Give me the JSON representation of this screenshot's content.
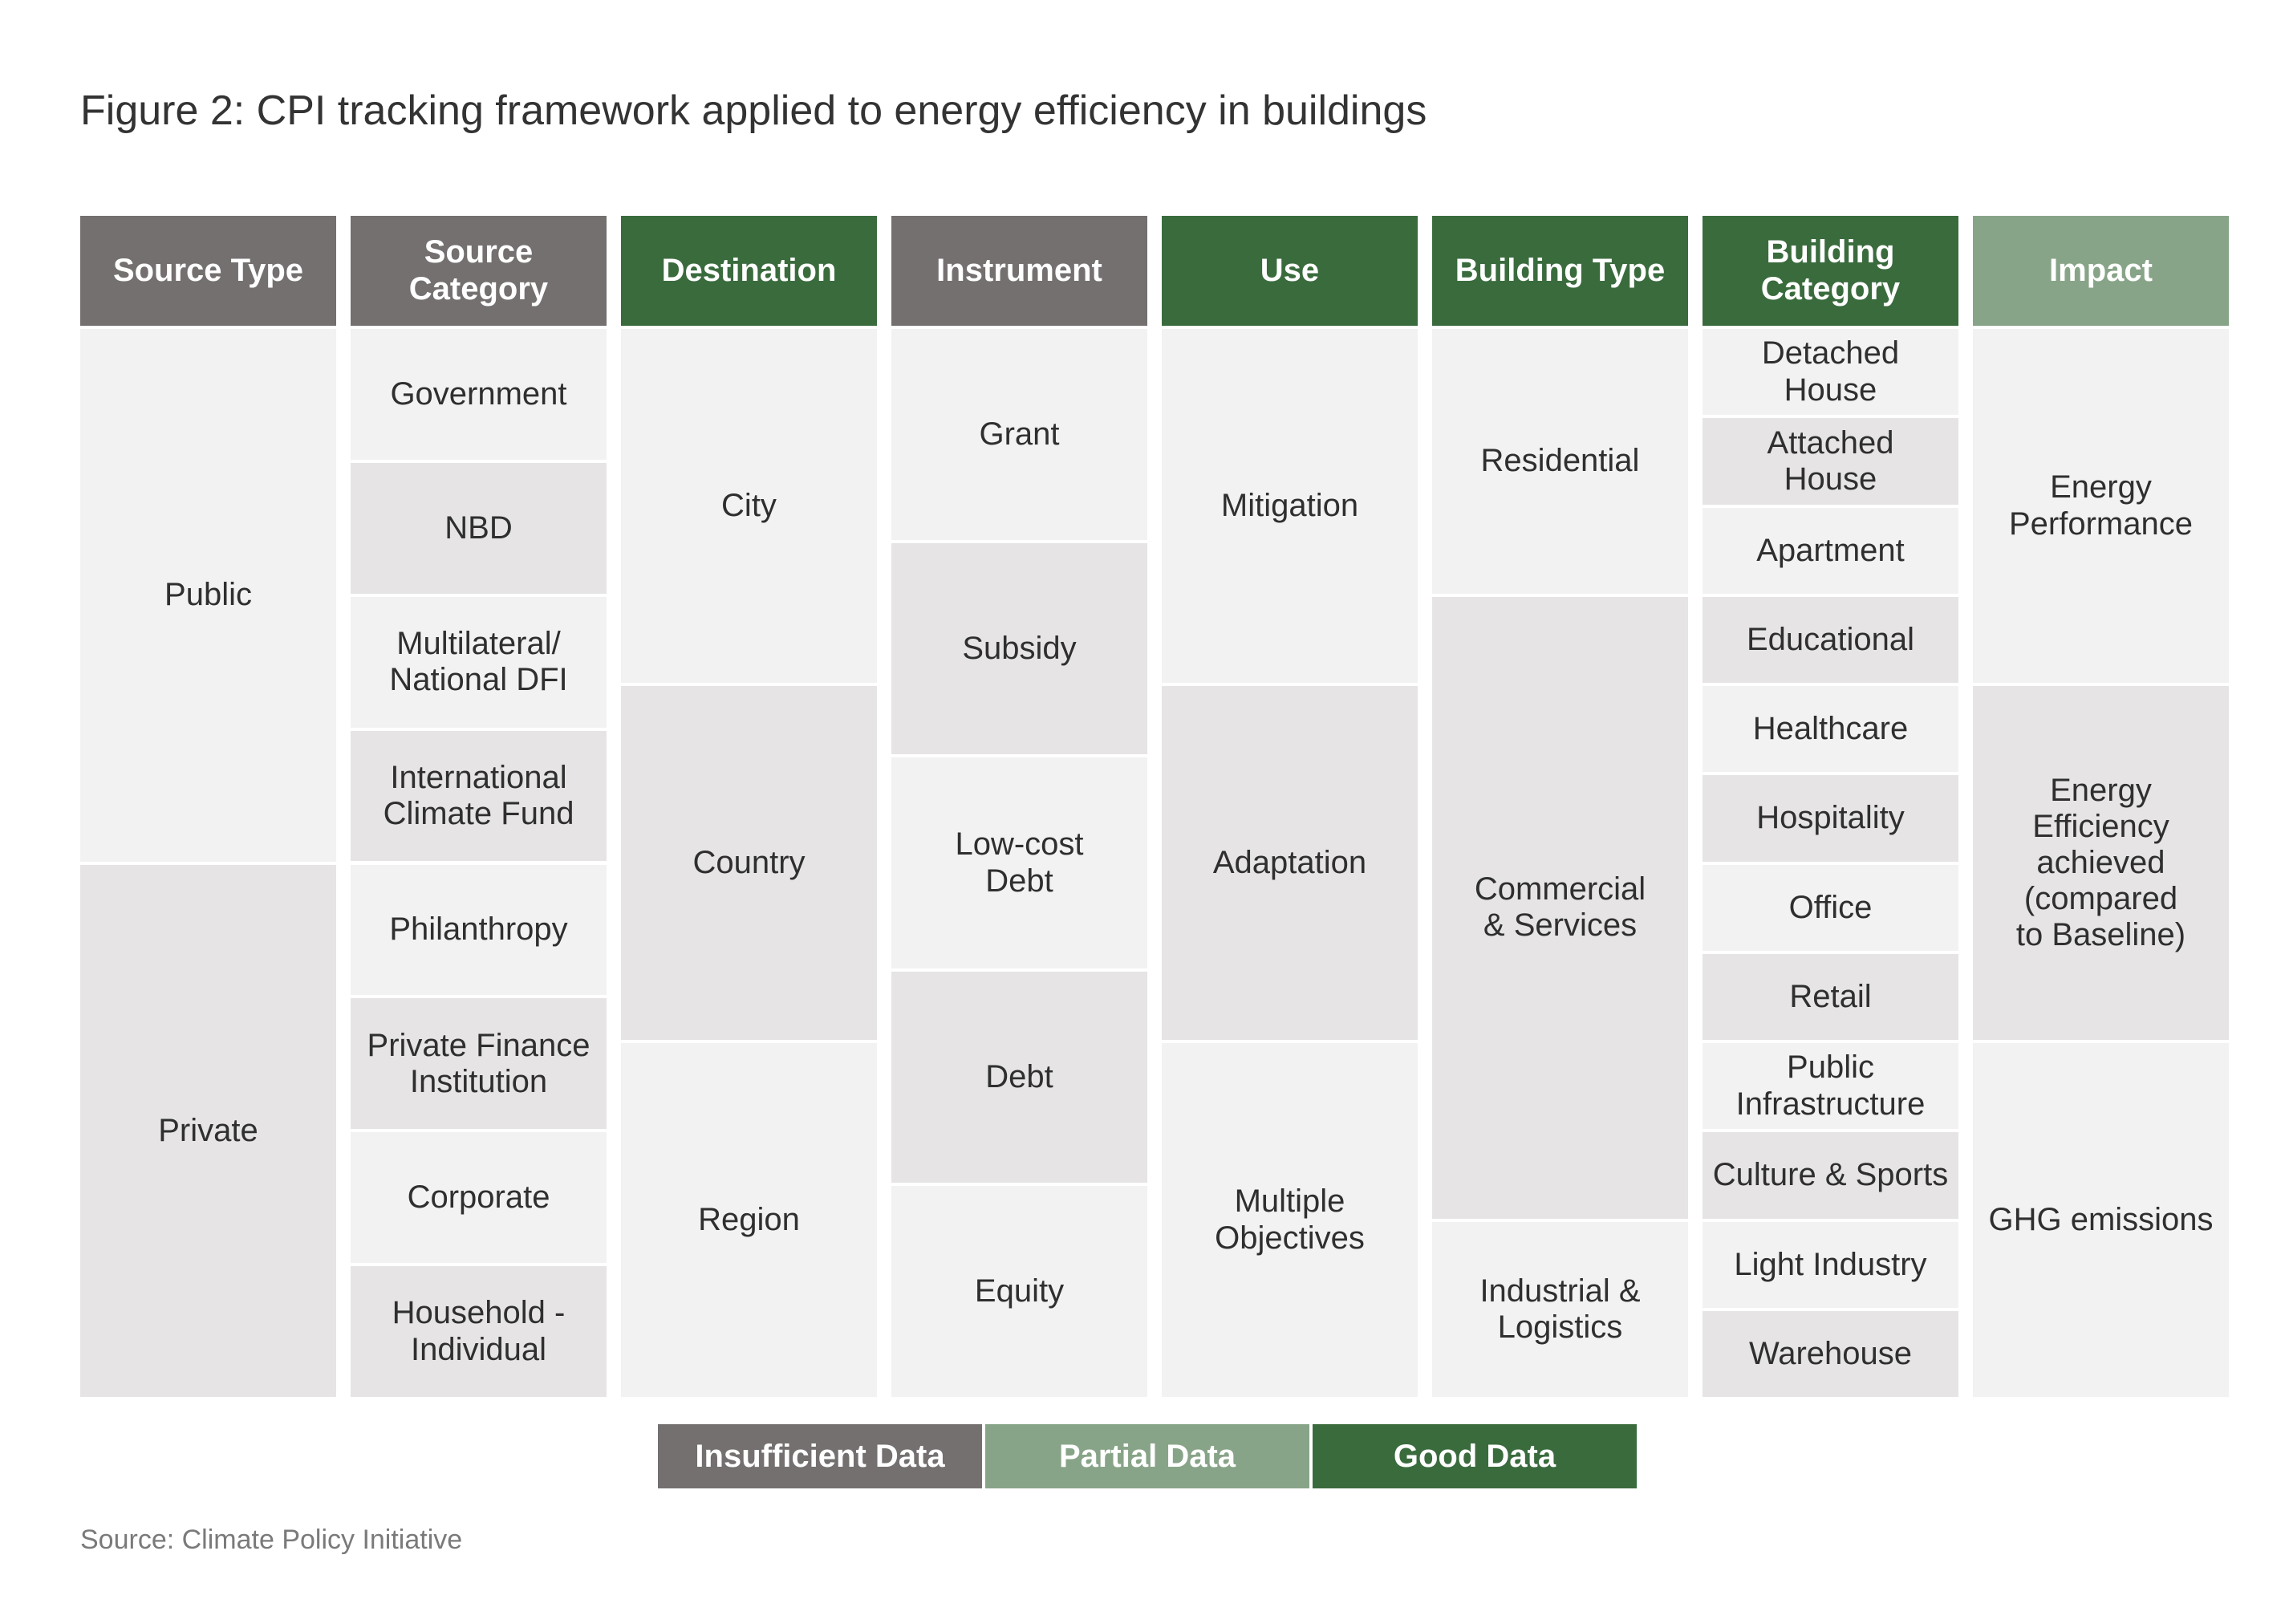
{
  "title": "Figure 2: CPI tracking framework applied to energy efficiency in buildings",
  "colors": {
    "insufficient": "#747070",
    "partial": "#88a488",
    "good": "#3a6b3d",
    "cell_light": "#f2f2f2",
    "cell_shaded": "#e6e4e4"
  },
  "columns": [
    {
      "header": "Source Type",
      "status": "insufficient",
      "cells": [
        {
          "label": "Public",
          "span": 6
        },
        {
          "label": "Private",
          "span": 6
        }
      ]
    },
    {
      "header": "Source\nCategory",
      "status": "insufficient",
      "cells": [
        {
          "label": "Government",
          "span": 1.5
        },
        {
          "label": "NBD",
          "span": 1.5
        },
        {
          "label": "Multilateral/\nNational DFI",
          "span": 1.5
        },
        {
          "label": "International\nClimate Fund",
          "span": 1.5
        },
        {
          "label": "Philanthropy",
          "span": 1.5
        },
        {
          "label": "Private Finance\nInstitution",
          "span": 1.5
        },
        {
          "label": "Corporate",
          "span": 1.5
        },
        {
          "label": "Household -\nIndividual",
          "span": 1.5
        }
      ]
    },
    {
      "header": "Destination",
      "status": "good",
      "cells": [
        {
          "label": "City",
          "span": 4
        },
        {
          "label": "Country",
          "span": 4
        },
        {
          "label": "Region",
          "span": 4
        }
      ]
    },
    {
      "header": "Instrument",
      "status": "insufficient",
      "cells": [
        {
          "label": "Grant",
          "span": 2.4
        },
        {
          "label": "Subsidy",
          "span": 2.4
        },
        {
          "label": "Low-cost\nDebt",
          "span": 2.4
        },
        {
          "label": "Debt",
          "span": 2.4
        },
        {
          "label": "Equity",
          "span": 2.4
        }
      ]
    },
    {
      "header": "Use",
      "status": "good",
      "cells": [
        {
          "label": "Mitigation",
          "span": 4
        },
        {
          "label": "Adaptation",
          "span": 4
        },
        {
          "label": "Multiple\nObjectives",
          "span": 4
        }
      ]
    },
    {
      "header": "Building Type",
      "status": "good",
      "cells": [
        {
          "label": "Residential",
          "span": 3
        },
        {
          "label": "Commercial\n& Services",
          "span": 7
        },
        {
          "label": "Industrial &\nLogistics",
          "span": 2
        }
      ]
    },
    {
      "header": "Building\nCategory",
      "status": "good",
      "cells": [
        {
          "label": "Detached\nHouse",
          "span": 1
        },
        {
          "label": "Attached\nHouse",
          "span": 1
        },
        {
          "label": "Apartment",
          "span": 1
        },
        {
          "label": "Educational",
          "span": 1
        },
        {
          "label": "Healthcare",
          "span": 1
        },
        {
          "label": "Hospitality",
          "span": 1
        },
        {
          "label": "Office",
          "span": 1
        },
        {
          "label": "Retail",
          "span": 1
        },
        {
          "label": "Public\nInfrastructure",
          "span": 1
        },
        {
          "label": "Culture & Sports",
          "span": 1
        },
        {
          "label": "Light Industry",
          "span": 1
        },
        {
          "label": "Warehouse",
          "span": 1
        }
      ]
    },
    {
      "header": "Impact",
      "status": "partial",
      "cells": [
        {
          "label": "Energy\nPerformance",
          "span": 4
        },
        {
          "label": "Energy\nEfficiency\nachieved\n(compared\nto Baseline)",
          "span": 4
        },
        {
          "label": "GHG emissions",
          "span": 4
        }
      ]
    }
  ],
  "legend": [
    {
      "label": "Insufficient Data",
      "status": "insufficient"
    },
    {
      "label": "Partial Data",
      "status": "partial"
    },
    {
      "label": "Good Data",
      "status": "good"
    }
  ],
  "source": "Source: Climate Policy Initiative"
}
